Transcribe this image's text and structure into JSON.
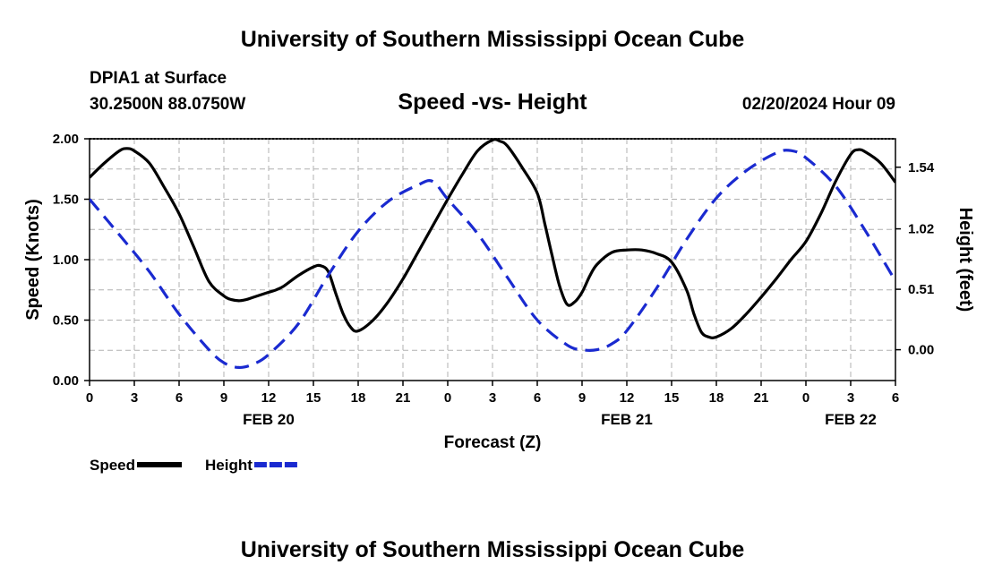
{
  "header": {
    "main_title": "University of Southern Mississippi Ocean Cube",
    "station": "DPIA1 at Surface",
    "coordinates": "30.2500N  88.0750W",
    "datetime": "02/20/2024 Hour 09",
    "footer_title": "University of Southern Mississippi Ocean Cube"
  },
  "chart_data": {
    "type": "line",
    "title": "Speed -vs- Height",
    "xlabel": "Forecast (Z)",
    "ylabel": "Speed (Knots)",
    "y2label": "Height (feet)",
    "grid": true,
    "legend_position": "bottom-left",
    "x_range_hours": [
      0,
      54
    ],
    "x_ticks": [
      0,
      3,
      6,
      9,
      12,
      15,
      18,
      21,
      24,
      27,
      30,
      33,
      36,
      39,
      42,
      45,
      48,
      51,
      54
    ],
    "x_tick_labels": [
      "0",
      "3",
      "6",
      "9",
      "12",
      "15",
      "18",
      "21",
      "0",
      "3",
      "6",
      "9",
      "12",
      "15",
      "18",
      "21",
      "0",
      "3",
      "6"
    ],
    "date_labels": [
      {
        "hour": 12,
        "label": "FEB 20"
      },
      {
        "hour": 36,
        "label": "FEB 21"
      },
      {
        "hour": 51,
        "label": "FEB 22"
      }
    ],
    "ylim": [
      0,
      2.0
    ],
    "y_ticks": [
      0,
      0.5,
      1.0,
      1.5,
      2.0
    ],
    "y_tick_labels": [
      "0.00",
      "0.50",
      "1.00",
      "1.50",
      "2.00"
    ],
    "y2lim": [
      -0.26,
      1.78
    ],
    "y2_ticks": [
      0,
      0.51,
      1.02,
      1.54
    ],
    "y2_tick_labels": [
      "0.00",
      "0.51",
      "1.02",
      "1.54"
    ],
    "series": [
      {
        "name": "Speed",
        "axis": "left",
        "color": "#000000",
        "dash": "solid",
        "x": [
          0,
          1,
          2,
          2.5,
          3,
          4,
          5,
          6,
          7,
          8,
          9,
          9.5,
          10,
          10.5,
          11,
          12,
          12.5,
          13,
          14,
          15,
          15.5,
          16,
          16.5,
          17,
          17.5,
          18,
          19,
          20,
          21,
          22,
          23,
          24,
          25,
          26,
          27,
          27.5,
          28,
          29,
          30,
          30.5,
          31,
          31.5,
          32,
          32.5,
          33,
          33.5,
          34,
          35,
          36,
          37,
          38,
          39,
          40,
          40.5,
          41,
          41.5,
          42,
          43,
          44,
          45,
          46,
          47,
          48,
          49,
          50,
          51,
          51.5,
          52,
          53,
          54
        ],
        "values": [
          1.68,
          1.8,
          1.9,
          1.92,
          1.9,
          1.8,
          1.6,
          1.38,
          1.1,
          0.82,
          0.7,
          0.67,
          0.66,
          0.67,
          0.69,
          0.73,
          0.75,
          0.78,
          0.87,
          0.94,
          0.95,
          0.9,
          0.72,
          0.55,
          0.44,
          0.41,
          0.5,
          0.65,
          0.84,
          1.06,
          1.28,
          1.5,
          1.71,
          1.9,
          1.99,
          1.98,
          1.94,
          1.76,
          1.55,
          1.3,
          1.03,
          0.78,
          0.63,
          0.65,
          0.73,
          0.86,
          0.96,
          1.06,
          1.08,
          1.08,
          1.05,
          0.98,
          0.75,
          0.55,
          0.4,
          0.36,
          0.36,
          0.43,
          0.55,
          0.69,
          0.84,
          1.0,
          1.15,
          1.38,
          1.65,
          1.87,
          1.91,
          1.89,
          1.8,
          1.64
        ]
      },
      {
        "name": "Height",
        "axis": "right",
        "color": "#1a2ad0",
        "dash": "dashed",
        "x": [
          0,
          2,
          4,
          6,
          8,
          9,
          10,
          11,
          12,
          14,
          16,
          18,
          20,
          22,
          23,
          24,
          26,
          28,
          30,
          32,
          33,
          34,
          35,
          36,
          38,
          40,
          42,
          44,
          46,
          47,
          48,
          50,
          52,
          54
        ],
        "values": [
          1.27,
          0.97,
          0.66,
          0.3,
          0.0,
          -0.11,
          -0.15,
          -0.12,
          -0.04,
          0.22,
          0.63,
          1.0,
          1.25,
          1.39,
          1.42,
          1.27,
          0.98,
          0.61,
          0.25,
          0.04,
          0.0,
          0.0,
          0.05,
          0.16,
          0.52,
          0.93,
          1.28,
          1.51,
          1.66,
          1.68,
          1.62,
          1.38,
          1.0,
          0.58
        ]
      }
    ]
  }
}
